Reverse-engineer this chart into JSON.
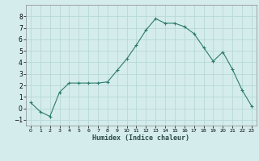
{
  "x": [
    0,
    1,
    2,
    3,
    4,
    5,
    6,
    7,
    8,
    9,
    10,
    11,
    12,
    13,
    14,
    15,
    16,
    17,
    18,
    19,
    20,
    21,
    22,
    23
  ],
  "y": [
    0.5,
    -0.3,
    -0.7,
    1.4,
    2.2,
    2.2,
    2.2,
    2.2,
    2.3,
    3.3,
    4.3,
    5.5,
    6.8,
    7.8,
    7.4,
    7.4,
    7.1,
    6.5,
    5.3,
    4.1,
    4.9,
    3.4,
    1.6,
    0.2
  ],
  "xlabel": "Humidex (Indice chaleur)",
  "bg_color": "#d4ecec",
  "grid_color": "#b8d8d8",
  "line_color": "#2d7a6e",
  "marker_color": "#2d7a6e",
  "xlim": [
    -0.5,
    23.5
  ],
  "ylim": [
    -1.5,
    9.0
  ],
  "yticks": [
    -1,
    0,
    1,
    2,
    3,
    4,
    5,
    6,
    7,
    8
  ],
  "xticks": [
    0,
    1,
    2,
    3,
    4,
    5,
    6,
    7,
    8,
    9,
    10,
    11,
    12,
    13,
    14,
    15,
    16,
    17,
    18,
    19,
    20,
    21,
    22,
    23
  ]
}
